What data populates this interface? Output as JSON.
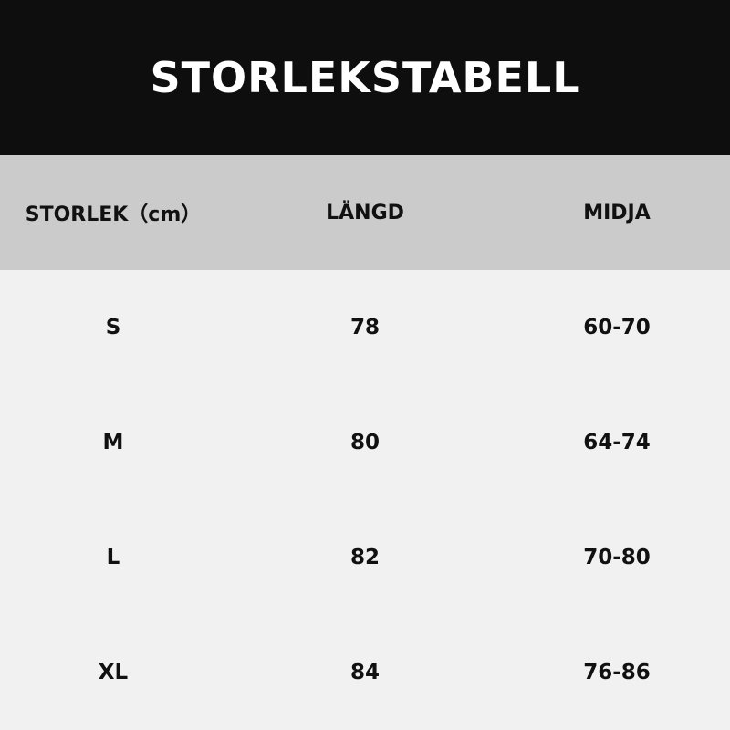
{
  "title": "STORLEKSTABELL",
  "headers": [
    "STORLEK（cm）",
    "LÄNGD",
    "MIDJA"
  ],
  "rows": [
    [
      "S",
      "78",
      "60-70"
    ],
    [
      "M",
      "80",
      "64-74"
    ],
    [
      "L",
      "82",
      "70-80"
    ],
    [
      "XL",
      "84",
      "76-86"
    ]
  ],
  "colors": {
    "header_bg": "#0e0e0e",
    "thead_bg": "#cbcbcb",
    "body_bg": "#f1f1f1"
  }
}
